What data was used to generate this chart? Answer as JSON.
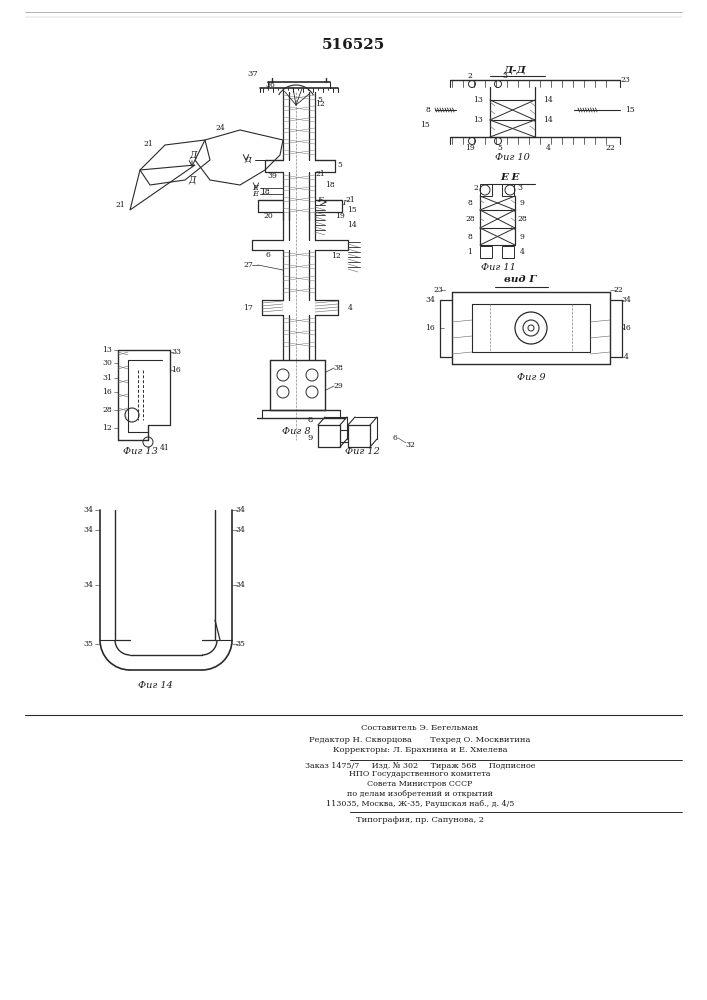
{
  "patent_number": "516525",
  "background_color": "#f5f5f0",
  "line_color": "#2a2a2a",
  "footer_lines": [
    "Составитель Э. Бегельман",
    "Редактор Н. Скворцова       Техред О. Москвитина",
    "Корректоры: Л. Брахнина и Е. Хмелева",
    "Заказ 1475/7     Изд. № 302     Тираж 568     Подписное",
    "НПО Государственного комитета",
    "Совета Министров СССР",
    "по делам изобретений и открытий",
    "113035, Москва, Ж-35, Раушская наб., д. 4/5",
    "Типография, пр. Сапунова, 2"
  ]
}
